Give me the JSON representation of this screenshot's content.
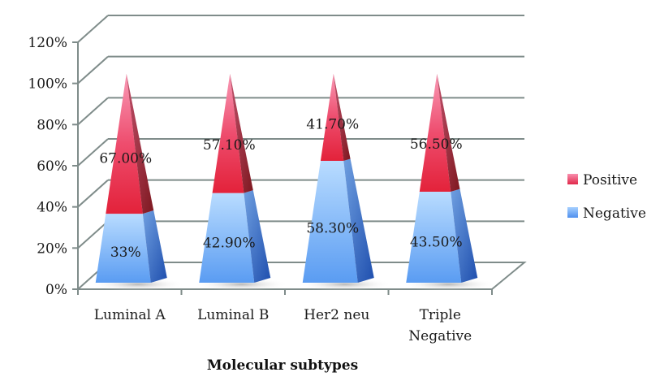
{
  "chart_data": {
    "type": "bar",
    "subtype": "3d-stacked-pyramid",
    "title": "",
    "xlabel": "Molecular subtypes",
    "ylabel": "",
    "ylim": [
      0,
      120
    ],
    "yticks": [
      "0%",
      "20%",
      "40%",
      "60%",
      "80%",
      "100%",
      "120%"
    ],
    "ytick_values": [
      0,
      20,
      40,
      60,
      80,
      100,
      120
    ],
    "grid": true,
    "legend_position": "right",
    "categories": [
      [
        "Luminal A"
      ],
      [
        "Luminal B"
      ],
      [
        "Her2 neu"
      ],
      [
        "Triple",
        "Negative"
      ]
    ],
    "series": [
      {
        "name": "Negative",
        "values": [
          33,
          42.9,
          58.3,
          43.5
        ],
        "labels": [
          "33%",
          "42.90%",
          "58.30%",
          "43.50%"
        ],
        "color_light": "#a9d3ff",
        "color_dark": "#2f5fbf",
        "color": "#5b9bf0"
      },
      {
        "name": "Positive",
        "values": [
          67,
          57.1,
          41.7,
          56.5
        ],
        "labels": [
          "67.00%",
          "57.10%",
          "41.70%",
          "56.50%"
        ],
        "color_light": "#f77fa0",
        "color_dark": "#8c1c22",
        "color": "#e2263c"
      }
    ],
    "legend": [
      {
        "name": "Positive",
        "color": "#e8466a"
      },
      {
        "name": "Negative",
        "color": "#6aaaf5"
      }
    ]
  }
}
